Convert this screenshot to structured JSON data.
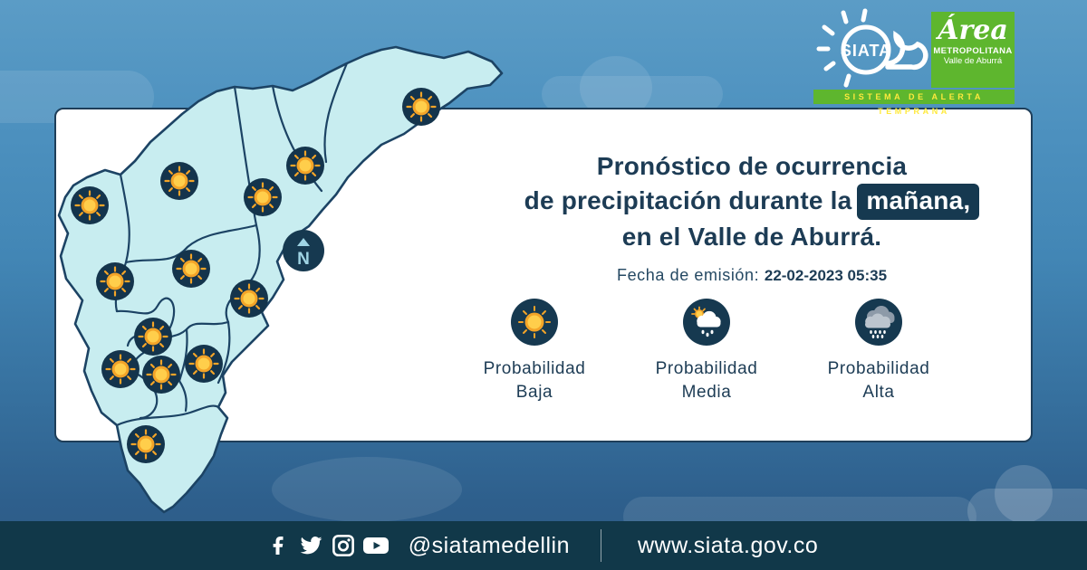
{
  "branding": {
    "siata_logo_text": "SIATA",
    "alerta_bar": "SISTEMA DE ALERTA TEMPRANA",
    "area_metropolitana": {
      "line1": "Área",
      "line2": "METROPOLITANA",
      "line3": "Valle de Aburrá"
    }
  },
  "card": {
    "title_line1": "Pronóstico de ocurrencia",
    "title_line2_prefix": "de precipitación durante la",
    "title_highlight": "mañana,",
    "title_line3": "en el Valle de Aburrá.",
    "emission_label": "Fecha de emisión:",
    "emission_value": "22-02-2023 05:35"
  },
  "legend": {
    "items": [
      {
        "icon": "sun-icon",
        "line1": "Probabilidad",
        "line2": "Baja"
      },
      {
        "icon": "sun-cloud-rain-icon",
        "line1": "Probabilidad",
        "line2": "Media"
      },
      {
        "icon": "cloud-rain-icon",
        "line1": "Probabilidad",
        "line2": "Alta"
      }
    ]
  },
  "map": {
    "compass_label": "N",
    "forecast_icon": "sun-icon",
    "forecast_meaning": "Probabilidad Baja en todos los municipios",
    "sun_positions": [
      [
        410,
        76
      ],
      [
        282,
        141
      ],
      [
        143,
        158
      ],
      [
        235,
        176
      ],
      [
        44,
        185
      ],
      [
        156,
        255
      ],
      [
        72,
        269
      ],
      [
        220,
        288
      ],
      [
        114,
        330
      ],
      [
        78,
        366
      ],
      [
        123,
        372
      ],
      [
        170,
        360
      ],
      [
        106,
        449
      ]
    ]
  },
  "footer": {
    "handle": "@siatamedellin",
    "website": "www.siata.gov.co"
  },
  "colors": {
    "background_top": "#5b9cc6",
    "background_bottom": "#2c5a85",
    "footer_bar": "#113849",
    "brand_green": "#5eb62e",
    "brand_yellow": "#ffe93c",
    "title_navy": "#1d3c55",
    "highlight_box": "#163950",
    "map_fill": "#c8edf0",
    "map_border": "#1c4364",
    "icon_circle": "#14344c",
    "sun_orange": "#f3a428",
    "sun_yellow": "#ffce4b"
  }
}
